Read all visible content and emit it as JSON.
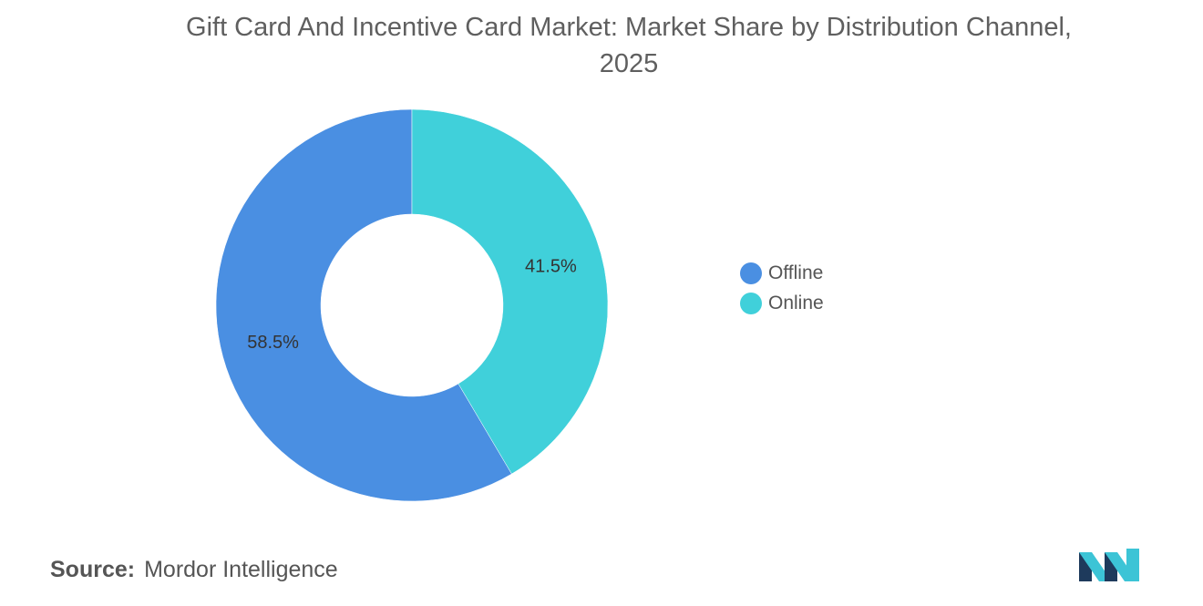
{
  "chart_data": {
    "type": "pie",
    "title_line1": "Gift Card And Incentive Card Market: Market Share by Distribution Channel,",
    "title_line2": "2025",
    "categories": [
      "Offline",
      "Online"
    ],
    "values": [
      58.5,
      41.5
    ],
    "value_labels": [
      "58.5%",
      "41.5%"
    ],
    "colors": [
      "#4a8fe2",
      "#40d0da"
    ],
    "donut": true,
    "legend_placement": "right"
  },
  "source": {
    "key": "Source:",
    "value": "Mordor Intelligence"
  },
  "logo": {
    "icon": "mordor-intelligence-logo-icon",
    "colors": [
      "#1e3a5c",
      "#3cc4d6"
    ]
  }
}
